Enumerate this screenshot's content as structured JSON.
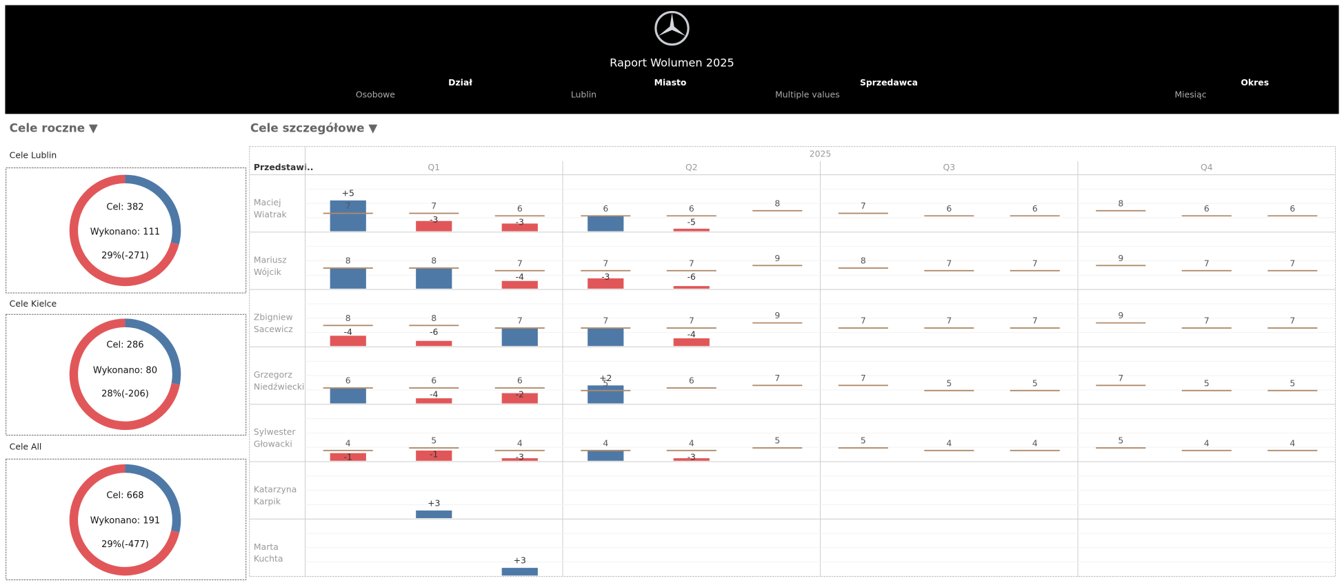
{
  "header": {
    "title": "Raport Wolumen 2025",
    "filters": [
      {
        "label": "Dział",
        "value": "Osobowe"
      },
      {
        "label": "Miasto",
        "value": "Lublin"
      },
      {
        "label": "Sprzedawca",
        "value": "Multiple values"
      },
      {
        "label": "Okres",
        "value": "Miesiąc"
      }
    ]
  },
  "sections": [
    "Cele roczne ▼",
    "Cele szczegółowe ▼"
  ],
  "chart_data": [
    {
      "type": "pie",
      "title": "Cele Lublin",
      "values": [
        111,
        271
      ],
      "colors": [
        "#4e79a7",
        "#e15759"
      ],
      "center_labels": [
        "Cel: 382",
        "Wykonano: 111",
        "29%(-271)"
      ]
    },
    {
      "type": "pie",
      "title": "Cele Kielce",
      "values": [
        80,
        206
      ],
      "colors": [
        "#4e79a7",
        "#e15759"
      ],
      "center_labels": [
        "Cel: 286",
        "Wykonano: 80",
        "28%(-206)"
      ]
    },
    {
      "type": "pie",
      "title": "Cele All",
      "values": [
        191,
        477
      ],
      "colors": [
        "#4e79a7",
        "#e15759"
      ],
      "center_labels": [
        "Cel: 668",
        "Wykonano: 191",
        "29%(-477)"
      ]
    },
    {
      "type": "bar",
      "column_header": "Przedstawi..",
      "year": "2025",
      "quarters": [
        "Q1",
        "Q2",
        "Q3",
        "Q4"
      ],
      "ylim": [
        0,
        22
      ],
      "color_met": "#4e79a7",
      "color_missed": "#e15759",
      "target_color": "#b08a6a",
      "rows": [
        {
          "name": [
            "Maciej",
            "Wiatrak"
          ],
          "target": [
            7,
            7,
            6,
            6,
            6,
            8,
            7,
            6,
            6,
            8,
            6,
            6
          ],
          "actual": [
            12,
            4,
            3,
            6,
            1,
            null,
            null,
            null,
            null,
            null,
            null,
            null
          ],
          "diff_labels": [
            "+5",
            "-3",
            "-3",
            null,
            "-5",
            null,
            null,
            null,
            null,
            null,
            null,
            null
          ]
        },
        {
          "name": [
            "Mariusz",
            "Wójcik"
          ],
          "target": [
            8,
            8,
            7,
            7,
            7,
            9,
            8,
            7,
            7,
            9,
            7,
            7
          ],
          "actual": [
            8,
            8,
            3,
            4,
            1,
            null,
            null,
            null,
            null,
            null,
            null,
            null
          ],
          "diff_labels": [
            null,
            null,
            "-4",
            "-3",
            "-6",
            null,
            null,
            null,
            null,
            null,
            null,
            null
          ]
        },
        {
          "name": [
            "Zbigniew",
            "Sacewicz"
          ],
          "target": [
            8,
            8,
            7,
            7,
            7,
            9,
            7,
            7,
            7,
            9,
            7,
            7
          ],
          "actual": [
            4,
            2,
            7,
            7,
            3,
            null,
            null,
            null,
            null,
            null,
            null,
            null
          ],
          "diff_labels": [
            "-4",
            "-6",
            null,
            null,
            "-4",
            null,
            null,
            null,
            null,
            null,
            null,
            null
          ]
        },
        {
          "name": [
            "Grzegorz",
            "Niedźwiecki"
          ],
          "target": [
            6,
            6,
            6,
            5,
            6,
            7,
            7,
            5,
            5,
            7,
            5,
            5
          ],
          "actual": [
            6,
            2,
            4,
            7,
            null,
            null,
            null,
            null,
            null,
            null,
            null,
            null
          ],
          "diff_labels": [
            null,
            "-4",
            "-2",
            "+2",
            null,
            null,
            null,
            null,
            null,
            null,
            null,
            null
          ]
        },
        {
          "name": [
            "Sylwester",
            "Głowacki"
          ],
          "target": [
            4,
            5,
            4,
            4,
            4,
            5,
            5,
            4,
            4,
            5,
            4,
            4
          ],
          "actual": [
            3,
            4,
            1,
            4,
            1,
            null,
            null,
            null,
            null,
            null,
            null,
            null
          ],
          "diff_labels": [
            "-1",
            "-1",
            "-3",
            null,
            "-3",
            null,
            null,
            null,
            null,
            null,
            null,
            null
          ]
        },
        {
          "name": [
            "Katarzyna",
            "Karpik"
          ],
          "target": [
            null,
            null,
            null,
            null,
            null,
            null,
            null,
            null,
            null,
            null,
            null,
            null
          ],
          "actual": [
            null,
            3,
            null,
            null,
            null,
            null,
            null,
            null,
            null,
            null,
            null,
            null
          ],
          "diff_labels": [
            null,
            "+3",
            null,
            null,
            null,
            null,
            null,
            null,
            null,
            null,
            null,
            null
          ]
        },
        {
          "name": [
            "Marta",
            "Kuchta"
          ],
          "target": [
            null,
            null,
            null,
            null,
            null,
            null,
            null,
            null,
            null,
            null,
            null,
            null
          ],
          "actual": [
            null,
            null,
            3,
            null,
            null,
            null,
            null,
            null,
            null,
            null,
            null,
            null
          ],
          "diff_labels": [
            null,
            null,
            "+3",
            null,
            null,
            null,
            null,
            null,
            null,
            null,
            null,
            null
          ]
        }
      ]
    }
  ]
}
